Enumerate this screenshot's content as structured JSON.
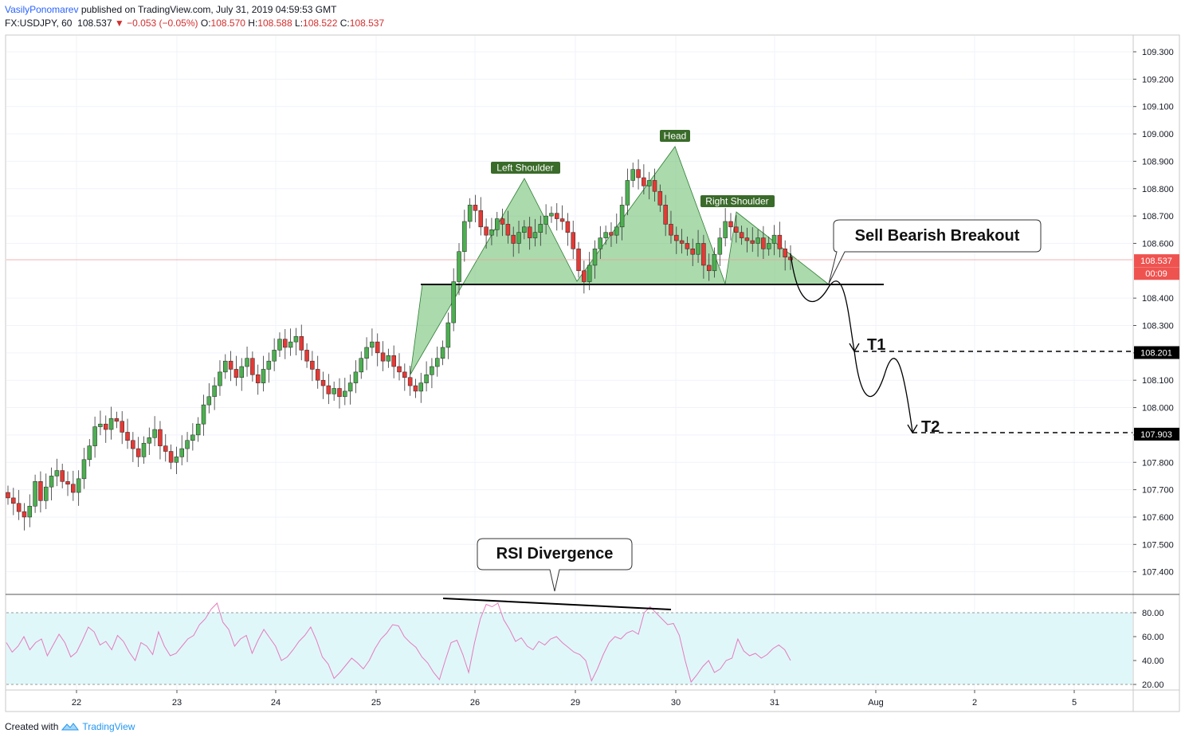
{
  "header": {
    "author": "VasilyPonomarev",
    "published": "published on TradingView.com, July 31, 2019 04:59:53 GMT",
    "symbol": "FX:USDJPY, 60",
    "last": "108.537",
    "change_arrow": "▼",
    "change": "−0.053 (−0.05%)",
    "o_label": "O:",
    "o": "108.570",
    "h_label": "H:",
    "h": "108.588",
    "l_label": "L:",
    "l": "108.522",
    "c_label": "C:",
    "c": "108.537"
  },
  "footer": {
    "created_with": "Created with",
    "brand": "TradingView",
    "icon": "tradingview-logo-icon"
  },
  "chart_data": {
    "type": "candlestick",
    "symbol": "FX:USDJPY",
    "interval": "60",
    "price_axis": {
      "ticks": [
        "109.300",
        "109.200",
        "109.100",
        "109.000",
        "108.900",
        "108.800",
        "108.700",
        "108.600",
        "108.400",
        "108.300",
        "108.200",
        "108.100",
        "108.000",
        "107.900",
        "107.800",
        "107.700",
        "107.600",
        "107.500",
        "107.400"
      ],
      "range": [
        107.32,
        109.36
      ]
    },
    "time_axis": {
      "ticks": [
        "22",
        "23",
        "24",
        "25",
        "26",
        "29",
        "30",
        "31",
        "Aug",
        "2",
        "5"
      ]
    },
    "price_badges": [
      {
        "label": "108.537",
        "value": 108.537,
        "color": "#ef5350"
      },
      {
        "label": "00:09",
        "value": 108.49,
        "color": "#ef5350"
      },
      {
        "label": "108.201",
        "value": 108.201,
        "color": "#000000"
      },
      {
        "label": "107.903",
        "value": 107.903,
        "color": "#000000"
      }
    ],
    "partial_label": "1",
    "close_series": [
      107.67,
      107.65,
      107.62,
      107.6,
      107.64,
      107.73,
      107.66,
      107.71,
      107.75,
      107.77,
      107.73,
      107.72,
      107.69,
      107.74,
      107.81,
      107.86,
      107.93,
      107.94,
      107.92,
      107.96,
      107.95,
      107.91,
      107.88,
      107.85,
      107.82,
      107.87,
      107.89,
      107.92,
      107.86,
      107.84,
      107.8,
      107.82,
      107.85,
      107.88,
      107.9,
      107.94,
      108.01,
      108.04,
      108.08,
      108.13,
      108.17,
      108.14,
      108.11,
      108.15,
      108.18,
      108.12,
      108.09,
      108.14,
      108.17,
      108.21,
      108.25,
      108.22,
      108.24,
      108.26,
      108.21,
      108.17,
      108.14,
      108.1,
      108.08,
      108.05,
      108.07,
      108.04,
      108.06,
      108.09,
      108.13,
      108.18,
      108.22,
      108.24,
      108.2,
      108.17,
      108.19,
      108.15,
      108.13,
      108.11,
      108.08,
      108.06,
      108.09,
      108.12,
      108.15,
      108.18,
      108.22,
      108.31,
      108.46,
      108.57,
      108.68,
      108.74,
      108.72,
      108.66,
      108.63,
      108.65,
      108.69,
      108.67,
      108.63,
      108.6,
      108.64,
      108.66,
      108.62,
      108.64,
      108.67,
      108.7,
      108.71,
      108.69,
      108.68,
      108.64,
      108.58,
      108.5,
      108.46,
      108.52,
      108.58,
      108.62,
      108.64,
      108.63,
      108.66,
      108.74,
      108.83,
      108.87,
      108.84,
      108.81,
      108.83,
      108.79,
      108.74,
      108.67,
      108.63,
      108.61,
      108.6,
      108.58,
      108.56,
      108.6,
      108.52,
      108.5,
      108.56,
      108.62,
      108.68,
      108.66,
      108.64,
      108.62,
      108.61,
      108.6,
      108.62,
      108.58,
      108.6,
      108.63,
      108.58,
      108.55,
      108.54
    ],
    "close_range": [
      "Jul 21",
      "Jul 31"
    ],
    "support_line": 108.45,
    "annotations": [
      {
        "text": "Left Shoulder",
        "price": 108.84
      },
      {
        "text": "Head",
        "price": 108.95
      },
      {
        "text": "Right Shoulder",
        "price": 108.72
      },
      {
        "text": "Sell Bearish Breakout"
      },
      {
        "text": "T1",
        "price": 108.201
      },
      {
        "text": "T2",
        "price": 107.903
      },
      {
        "text": "RSI Divergence"
      }
    ],
    "rsi": {
      "ticks": [
        "80.00",
        "60.00",
        "40.00",
        "20.00"
      ],
      "range": [
        20,
        80
      ],
      "values": [
        55,
        47,
        52,
        60,
        49,
        55,
        58,
        44,
        53,
        62,
        55,
        43,
        47,
        57,
        68,
        64,
        53,
        56,
        49,
        61,
        56,
        47,
        40,
        55,
        52,
        45,
        64,
        52,
        44,
        46,
        52,
        58,
        61,
        70,
        75,
        83,
        88,
        72,
        66,
        52,
        58,
        61,
        46,
        57,
        66,
        59,
        52,
        40,
        43,
        49,
        56,
        61,
        68,
        57,
        43,
        37,
        25,
        30,
        36,
        42,
        38,
        33,
        40,
        50,
        58,
        63,
        70,
        69,
        60,
        55,
        51,
        43,
        38,
        30,
        24,
        40,
        55,
        57,
        45,
        30,
        55,
        75,
        87,
        85,
        88,
        74,
        66,
        56,
        59,
        52,
        49,
        56,
        53,
        58,
        60,
        55,
        51,
        47,
        45,
        40,
        23,
        33,
        45,
        55,
        60,
        58,
        63,
        65,
        62,
        80,
        85,
        80,
        75,
        70,
        71,
        61,
        40,
        22,
        28,
        35,
        40,
        30,
        33,
        40,
        42,
        58,
        48,
        44,
        46,
        42,
        45,
        50,
        53,
        49,
        40
      ]
    }
  }
}
